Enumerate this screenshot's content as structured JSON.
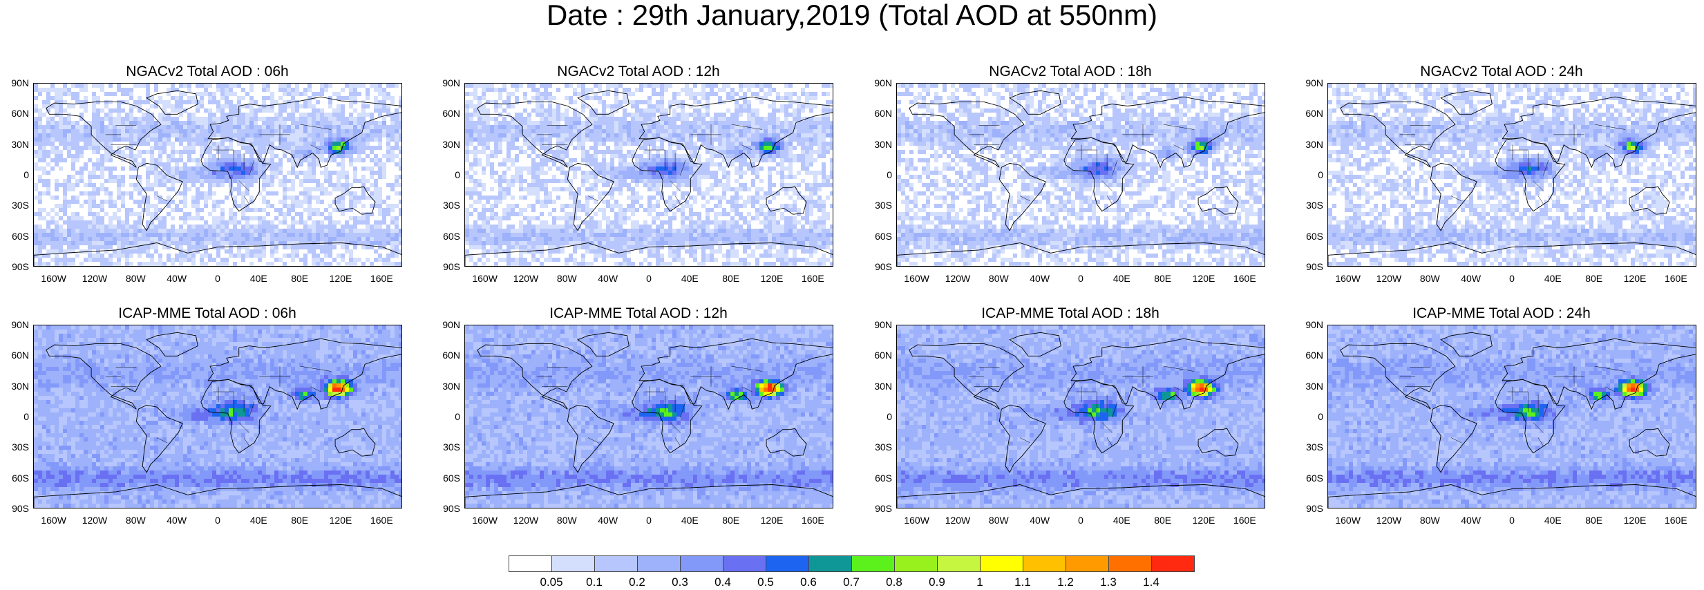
{
  "title": "Date : 29th January,2019 (Total AOD at 550nm)",
  "panels": [
    {
      "title": "NGACv2 Total AOD : 06h",
      "model": "NGAC",
      "hour": "06h",
      "seed": 11
    },
    {
      "title": "NGACv2 Total AOD : 12h",
      "model": "NGAC",
      "hour": "12h",
      "seed": 23
    },
    {
      "title": "NGACv2 Total AOD : 18h",
      "model": "NGAC",
      "hour": "18h",
      "seed": 37
    },
    {
      "title": "NGACv2 Total AOD : 24h",
      "model": "NGAC",
      "hour": "24h",
      "seed": 41
    },
    {
      "title": "ICAP-MME Total AOD : 06h",
      "model": "ICAP",
      "hour": "06h",
      "seed": 53
    },
    {
      "title": "ICAP-MME Total AOD : 12h",
      "model": "ICAP",
      "hour": "12h",
      "seed": 61
    },
    {
      "title": "ICAP-MME Total AOD : 18h",
      "model": "ICAP",
      "hour": "18h",
      "seed": 71
    },
    {
      "title": "ICAP-MME Total AOD : 24h",
      "model": "ICAP",
      "hour": "24h",
      "seed": 83
    }
  ],
  "lat_labels": [
    "90N",
    "60N",
    "30N",
    "0",
    "30S",
    "60S",
    "90S"
  ],
  "lon_labels": [
    "160W",
    "120W",
    "80W",
    "40W",
    "0",
    "40E",
    "80E",
    "120E",
    "160E"
  ],
  "colorbar": {
    "colors": [
      "#ffffff",
      "#d4defd",
      "#b7c6fc",
      "#9db2fb",
      "#8399fa",
      "#6a70f2",
      "#1d64f0",
      "#0f9696",
      "#5cf01c",
      "#98f01c",
      "#c6f640",
      "#ffff00",
      "#ffc000",
      "#ff9a00",
      "#ff7000",
      "#ff2a10"
    ],
    "labels": [
      "0.05",
      "0.1",
      "0.2",
      "0.3",
      "0.4",
      "0.5",
      "0.6",
      "0.7",
      "0.8",
      "0.9",
      "1",
      "1.1",
      "1.2",
      "1.3",
      "1.4"
    ]
  }
}
